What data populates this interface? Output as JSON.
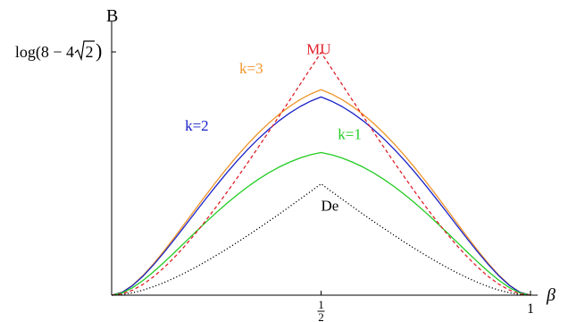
{
  "chart_data": {
    "type": "line",
    "title": "",
    "xlabel": "β",
    "ylabel": "B",
    "xlim": [
      0,
      1
    ],
    "ylim": [
      0,
      0.9
    ],
    "x_ticks": [
      {
        "value": 0.5,
        "num": "1",
        "den": "2"
      },
      {
        "value": 1.0,
        "label": "1"
      }
    ],
    "y_ticks": [
      {
        "value": 0.8499,
        "text_pre": "log(8 − 4 ",
        "sqrt_arg": "2",
        "text_post": ")"
      }
    ],
    "grid": false,
    "legend": "none",
    "series": [
      {
        "name": "k=3",
        "color": "#f0952a",
        "dash": "solid",
        "x": [
          0,
          0.025,
          0.05,
          0.075,
          0.1,
          0.125,
          0.15,
          0.175,
          0.2,
          0.225,
          0.25,
          0.275,
          0.3,
          0.325,
          0.35,
          0.375,
          0.4,
          0.425,
          0.45,
          0.475,
          0.5,
          0.525,
          0.55,
          0.575,
          0.6,
          0.625,
          0.65,
          0.675,
          0.7,
          0.725,
          0.75,
          0.775,
          0.8,
          0.825,
          0.85,
          0.875,
          0.9,
          0.925,
          0.95,
          0.975,
          1
        ],
        "y": [
          0,
          0.0101,
          0.0347,
          0.0691,
          0.1097,
          0.1546,
          0.2021,
          0.2511,
          0.3005,
          0.3494,
          0.3972,
          0.4432,
          0.4869,
          0.528,
          0.566,
          0.6008,
          0.6321,
          0.6596,
          0.6833,
          0.7028,
          0.718,
          0.7028,
          0.6833,
          0.6596,
          0.6321,
          0.6008,
          0.566,
          0.528,
          0.4869,
          0.4432,
          0.3972,
          0.3494,
          0.3005,
          0.2511,
          0.2021,
          0.1546,
          0.1097,
          0.0691,
          0.0347,
          0.0101,
          0
        ]
      },
      {
        "name": "k=2",
        "color": "#1a22c8",
        "dash": "solid",
        "x": [
          0,
          0.025,
          0.05,
          0.075,
          0.1,
          0.125,
          0.15,
          0.175,
          0.2,
          0.225,
          0.25,
          0.275,
          0.3,
          0.325,
          0.35,
          0.375,
          0.4,
          0.425,
          0.45,
          0.475,
          0.5,
          0.525,
          0.55,
          0.575,
          0.6,
          0.625,
          0.65,
          0.675,
          0.7,
          0.725,
          0.75,
          0.775,
          0.8,
          0.825,
          0.85,
          0.875,
          0.9,
          0.925,
          0.95,
          0.975,
          1
        ],
        "y": [
          0,
          0.0097,
          0.0335,
          0.0667,
          0.1059,
          0.1492,
          0.195,
          0.2422,
          0.2898,
          0.337,
          0.3831,
          0.4275,
          0.4696,
          0.5092,
          0.5459,
          0.5794,
          0.6096,
          0.6362,
          0.659,
          0.6778,
          0.6925,
          0.6778,
          0.659,
          0.6362,
          0.6096,
          0.5794,
          0.5459,
          0.5092,
          0.4696,
          0.4275,
          0.3831,
          0.337,
          0.2898,
          0.2422,
          0.195,
          0.1492,
          0.1059,
          0.0667,
          0.0335,
          0.0097,
          0
        ]
      },
      {
        "name": "k=1",
        "color": "#22cc22",
        "dash": "solid",
        "x": [
          0,
          0.025,
          0.05,
          0.075,
          0.1,
          0.125,
          0.15,
          0.175,
          0.2,
          0.225,
          0.25,
          0.275,
          0.3,
          0.325,
          0.35,
          0.375,
          0.4,
          0.425,
          0.45,
          0.475,
          0.5,
          0.525,
          0.55,
          0.575,
          0.6,
          0.625,
          0.65,
          0.675,
          0.7,
          0.725,
          0.75,
          0.775,
          0.8,
          0.825,
          0.85,
          0.875,
          0.9,
          0.925,
          0.95,
          0.975,
          1
        ],
        "y": [
          0,
          0.0076,
          0.026,
          0.0516,
          0.0816,
          0.1146,
          0.1492,
          0.1846,
          0.22,
          0.2548,
          0.2885,
          0.3207,
          0.3509,
          0.3789,
          0.4045,
          0.4275,
          0.4476,
          0.4649,
          0.4792,
          0.4905,
          0.4986,
          0.4905,
          0.4792,
          0.4649,
          0.4476,
          0.4275,
          0.4045,
          0.3789,
          0.3509,
          0.3207,
          0.2885,
          0.2548,
          0.22,
          0.1846,
          0.1492,
          0.1146,
          0.0816,
          0.0516,
          0.026,
          0.0076,
          0
        ]
      },
      {
        "name": "MU",
        "color": "#e0202a",
        "dash": "dashed",
        "x": [
          0,
          0.025,
          0.05,
          0.075,
          0.1,
          0.125,
          0.15,
          0.175,
          0.2,
          0.225,
          0.25,
          0.275,
          0.3,
          0.325,
          0.35,
          0.375,
          0.4,
          0.425,
          0.45,
          0.475,
          0.5,
          0.525,
          0.55,
          0.575,
          0.6,
          0.625,
          0.65,
          0.675,
          0.7,
          0.725,
          0.75,
          0.775,
          0.8,
          0.825,
          0.85,
          0.875,
          0.9,
          0.925,
          0.95,
          0.975,
          1
        ],
        "y": [
          0,
          0.0045,
          0.0175,
          0.0378,
          0.0643,
          0.096,
          0.1322,
          0.1722,
          0.2153,
          0.2611,
          0.3091,
          0.359,
          0.4104,
          0.463,
          0.5166,
          0.5709,
          0.6258,
          0.681,
          0.7365,
          0.7922,
          0.8479,
          0.7922,
          0.7365,
          0.681,
          0.6258,
          0.5709,
          0.5166,
          0.463,
          0.4104,
          0.359,
          0.3091,
          0.2611,
          0.2153,
          0.1722,
          0.1322,
          0.096,
          0.0643,
          0.0378,
          0.0175,
          0.0045,
          0
        ]
      },
      {
        "name": "De",
        "color": "#000000",
        "dash": "dotted",
        "x": [
          0,
          0.025,
          0.05,
          0.075,
          0.1,
          0.125,
          0.15,
          0.175,
          0.2,
          0.225,
          0.25,
          0.275,
          0.3,
          0.325,
          0.35,
          0.375,
          0.4,
          0.425,
          0.45,
          0.475,
          0.5,
          0.525,
          0.55,
          0.575,
          0.6,
          0.625,
          0.65,
          0.675,
          0.7,
          0.725,
          0.75,
          0.775,
          0.8,
          0.825,
          0.85,
          0.875,
          0.9,
          0.925,
          0.95,
          0.975,
          1
        ],
        "y": [
          0,
          0.0022,
          0.0083,
          0.0176,
          0.0296,
          0.0439,
          0.0601,
          0.0779,
          0.0972,
          0.1176,
          0.1391,
          0.1615,
          0.1846,
          0.2085,
          0.233,
          0.2579,
          0.2834,
          0.3093,
          0.3356,
          0.3621,
          0.3889,
          0.3621,
          0.3356,
          0.3093,
          0.2834,
          0.2579,
          0.233,
          0.2085,
          0.1846,
          0.1615,
          0.1391,
          0.1176,
          0.0972,
          0.0779,
          0.0601,
          0.0439,
          0.0296,
          0.0176,
          0.0083,
          0.0022,
          0
        ]
      }
    ],
    "annotations": [
      {
        "text": "MU",
        "color": "#e0202a",
        "x": 0.465,
        "y": 0.842
      },
      {
        "text": "k=3",
        "color": "#f0952a",
        "x": 0.305,
        "y": 0.775
      },
      {
        "text": "k=2",
        "color": "#1a22c8",
        "x": 0.175,
        "y": 0.575
      },
      {
        "text": "k=1",
        "color": "#22cc22",
        "x": 0.54,
        "y": 0.545
      },
      {
        "text": "De",
        "color": "#000000",
        "x": 0.5,
        "y": 0.295
      }
    ]
  }
}
